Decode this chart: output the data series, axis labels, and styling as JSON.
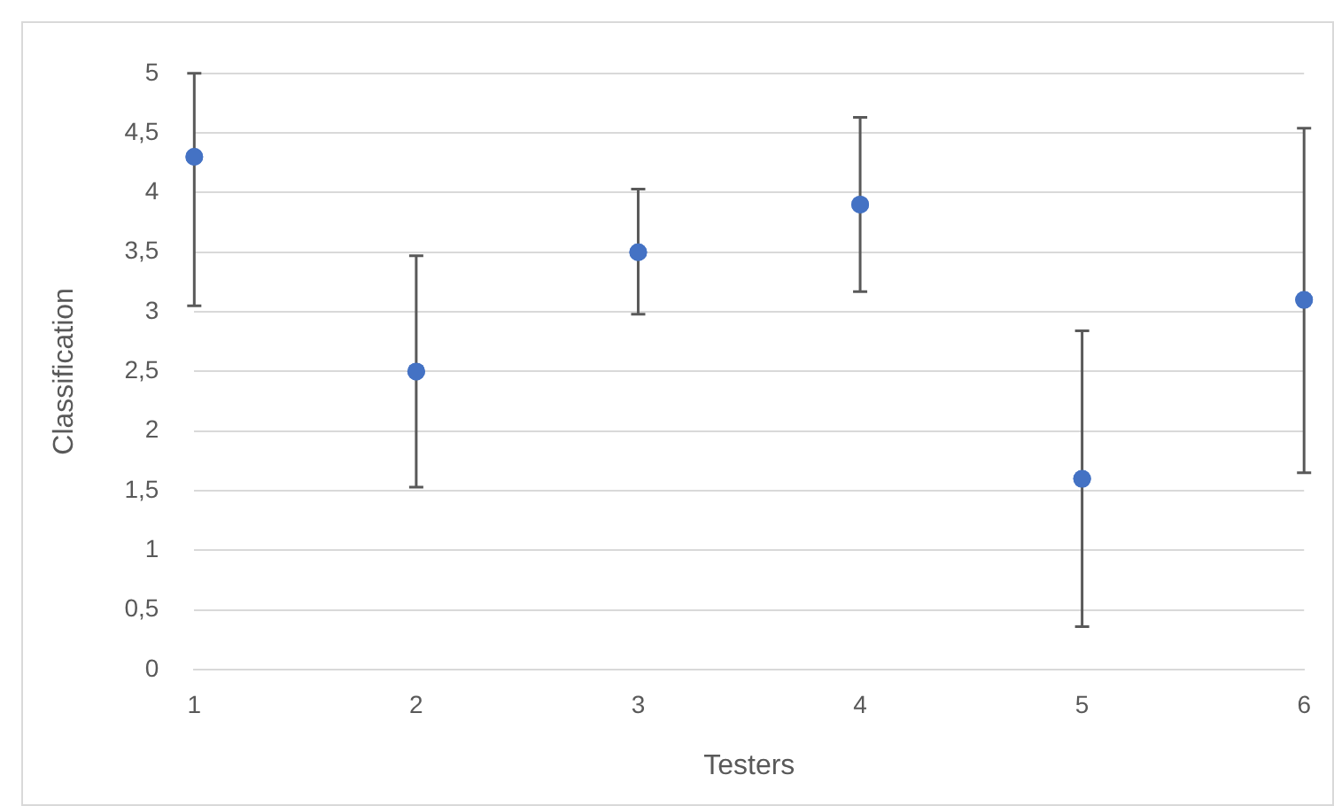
{
  "chart_data": {
    "type": "scatter",
    "xlabel": "Testers",
    "ylabel": "Classification",
    "categories": [
      "1",
      "2",
      "3",
      "4",
      "5",
      "6"
    ],
    "values": [
      4.3,
      2.5,
      3.5,
      3.9,
      1.6,
      3.1
    ],
    "errors": [
      [
        3.05,
        5
      ],
      [
        1.53,
        3.47
      ],
      [
        2.98,
        4.03
      ],
      [
        3.17,
        4.63
      ],
      [
        0.36,
        2.84
      ],
      [
        1.65,
        4.54
      ]
    ],
    "color": "#4472c4",
    "marker": "circle",
    "ylim": [
      0,
      5
    ],
    "yticks": [
      0,
      {
        "value": 0.5,
        "label": "0,5"
      },
      1,
      {
        "value": 1.5,
        "label": "1,5"
      },
      2,
      {
        "value": 2.5,
        "label": "2,5"
      },
      3,
      {
        "value": 3.5,
        "label": "3,5"
      },
      4,
      {
        "value": 4.5,
        "label": "4,5"
      },
      5
    ],
    "grid": "y",
    "legend": false
  }
}
